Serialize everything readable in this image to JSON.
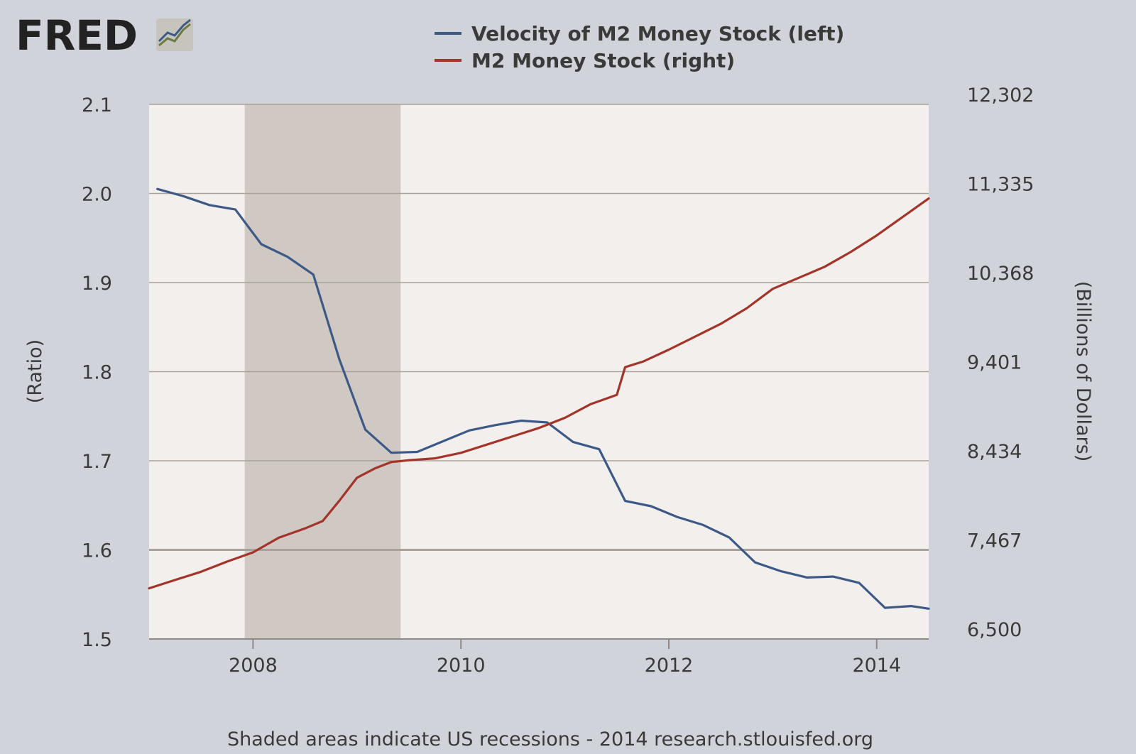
{
  "brand": {
    "name": "FRED",
    "icon": "line-chart-icon"
  },
  "colors": {
    "background": "#d0d4da",
    "plot_background": "#f2efec",
    "recession_shade": "#cfc8c3",
    "velocity_series": "#3d5a87",
    "m2_series": "#a2342a",
    "gridline": "#a9a29c",
    "text": "#3a3a3a"
  },
  "footer": "Shaded areas indicate US recessions - 2014 research.stlouisfed.org",
  "chart_data": {
    "type": "line",
    "title": "",
    "xlabel": "",
    "ylabel_left": "(Ratio)",
    "ylabel_right": "(Billions of Dollars)",
    "xlim": [
      2007.0,
      2014.5
    ],
    "ylim_left": [
      1.5,
      2.1
    ],
    "ylim_right": [
      6500,
      12302
    ],
    "x_ticks": [
      "2008",
      "2010",
      "2012",
      "2014"
    ],
    "x_tick_values": [
      2008,
      2010,
      2012,
      2014
    ],
    "y_ticks_left": [
      "1.5",
      "1.6",
      "1.7",
      "1.8",
      "1.9",
      "2.0",
      "2.1"
    ],
    "y_ticks_right": [
      "6,500",
      "7,467",
      "8,434",
      "9,401",
      "10,368",
      "11,335",
      "12,302"
    ],
    "grid": true,
    "legend": "top-center",
    "recessions": [
      [
        2007.92,
        2009.42
      ]
    ],
    "series": [
      {
        "name": "Velocity of M2 Money Stock (left)",
        "axis": "left",
        "x": [
          2007.08,
          2007.33,
          2007.58,
          2007.83,
          2008.08,
          2008.33,
          2008.58,
          2008.83,
          2009.08,
          2009.33,
          2009.58,
          2009.83,
          2010.08,
          2010.33,
          2010.58,
          2010.83,
          2011.08,
          2011.33,
          2011.58,
          2011.83,
          2012.08,
          2012.33,
          2012.58,
          2012.83,
          2013.08,
          2013.33,
          2013.58,
          2013.83,
          2014.08,
          2014.33,
          2014.5
        ],
        "values": [
          2.005,
          1.997,
          1.987,
          1.982,
          1.943,
          1.929,
          1.909,
          1.814,
          1.735,
          1.709,
          1.71,
          1.722,
          1.734,
          1.74,
          1.745,
          1.743,
          1.721,
          1.713,
          1.655,
          1.649,
          1.637,
          1.628,
          1.614,
          1.586,
          1.576,
          1.569,
          1.57,
          1.563,
          1.535,
          1.537,
          1.534
        ]
      },
      {
        "name": "M2 Money Stock (right)",
        "axis": "right",
        "x": [
          2007.0,
          2007.25,
          2007.5,
          2007.75,
          2008.0,
          2008.25,
          2008.5,
          2008.67,
          2008.83,
          2009.0,
          2009.17,
          2009.33,
          2009.5,
          2009.75,
          2010.0,
          2010.25,
          2010.5,
          2010.75,
          2011.0,
          2011.25,
          2011.5,
          2011.58,
          2011.75,
          2012.0,
          2012.25,
          2012.5,
          2012.75,
          2013.0,
          2013.25,
          2013.5,
          2013.75,
          2014.0,
          2014.25,
          2014.5
        ],
        "values": [
          7050,
          7140,
          7230,
          7340,
          7440,
          7600,
          7700,
          7780,
          8000,
          8250,
          8350,
          8420,
          8440,
          8460,
          8520,
          8610,
          8700,
          8790,
          8900,
          9050,
          9150,
          9450,
          9510,
          9640,
          9780,
          9920,
          10090,
          10300,
          10420,
          10540,
          10700,
          10880,
          11080,
          11280
        ]
      }
    ]
  }
}
